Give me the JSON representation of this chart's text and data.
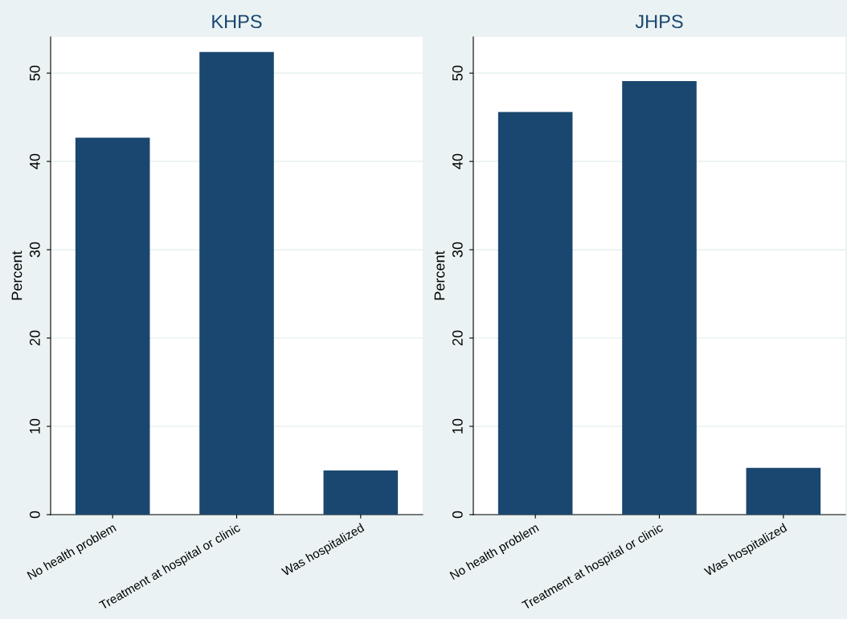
{
  "chart_data": [
    {
      "type": "bar",
      "title": "KHPS",
      "ylabel": "Percent",
      "categories": [
        "No health problem",
        "Treatment at hospital or clinic",
        "Was hospitalized"
      ],
      "values": [
        42.7,
        52.4,
        5.0
      ],
      "color": "#1a476f",
      "ylim": [
        0,
        54.1
      ],
      "yticks": [
        0,
        10,
        20,
        30,
        40,
        50
      ],
      "grid": "y",
      "legend": false
    },
    {
      "type": "bar",
      "title": "JHPS",
      "ylabel": "Percent",
      "categories": [
        "No health problem",
        "Treatment at hospital or clinic",
        "Was hospitalized"
      ],
      "values": [
        45.6,
        49.1,
        5.3
      ],
      "color": "#1a476f",
      "ylim": [
        0,
        54.1
      ],
      "yticks": [
        0,
        10,
        20,
        30,
        40,
        50
      ],
      "grid": "y",
      "legend": false
    }
  ]
}
